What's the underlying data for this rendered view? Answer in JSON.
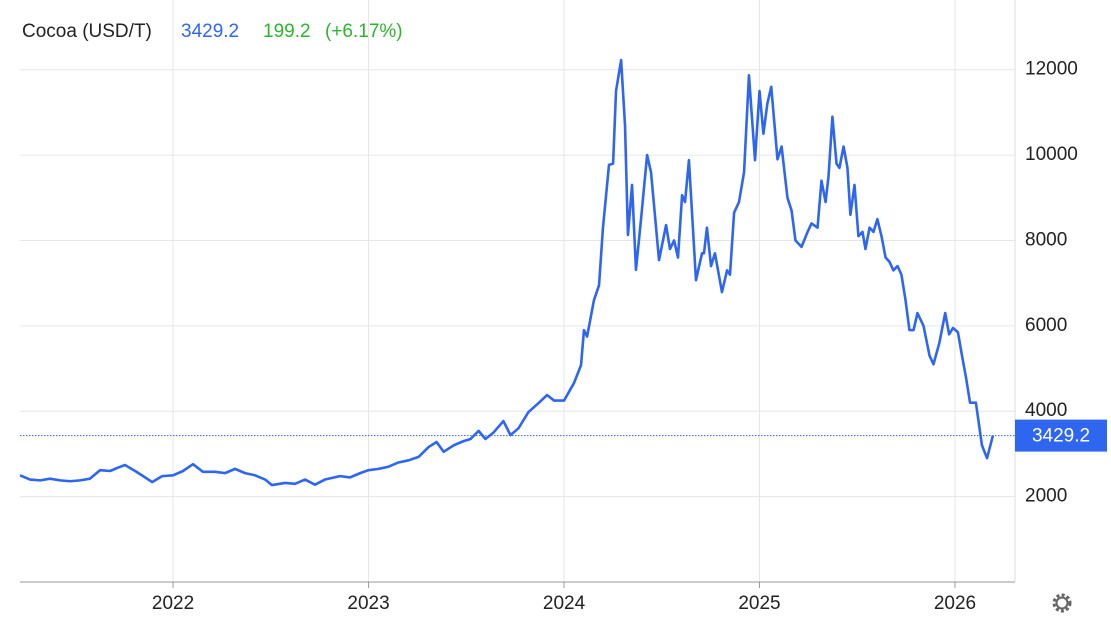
{
  "chart_data": {
    "type": "line",
    "title": "Cocoa (USD/T)",
    "price": 3429.2,
    "change": 199.2,
    "change_pct": "(+6.17%)",
    "xlim": [
      2021.217,
      2026.307
    ],
    "xticks": [
      2022,
      2023,
      2024,
      2025,
      2026
    ],
    "ylim": [
      0,
      13000
    ],
    "yticks": [
      2000,
      4000,
      6000,
      8000,
      10000,
      12000
    ],
    "grid": true,
    "series": [
      {
        "name": "Cocoa",
        "color": "#2f66f0",
        "x": [
          2021.217,
          2021.269,
          2021.32,
          2021.371,
          2021.422,
          2021.473,
          2021.524,
          2021.575,
          2021.627,
          2021.678,
          2021.719,
          2021.754,
          2021.806,
          2021.857,
          2021.893,
          2021.944,
          2022.0,
          2022.051,
          2022.102,
          2022.153,
          2022.215,
          2022.266,
          2022.317,
          2022.368,
          2022.419,
          2022.471,
          2022.506,
          2022.573,
          2022.624,
          2022.675,
          2022.726,
          2022.777,
          2022.854,
          2022.905,
          2022.957,
          2023.0,
          2023.051,
          2023.102,
          2023.153,
          2023.205,
          2023.256,
          2023.307,
          2023.348,
          2023.384,
          2023.435,
          2023.486,
          2023.522,
          2023.563,
          2023.598,
          2023.639,
          2023.69,
          2023.726,
          2023.767,
          2023.818,
          2023.872,
          2023.913,
          2023.949,
          2024.0,
          2024.051,
          2024.087,
          2024.102,
          2024.118,
          2024.153,
          2024.179,
          2024.199,
          2024.23,
          2024.251,
          2024.266,
          2024.292,
          2024.312,
          2024.327,
          2024.348,
          2024.368,
          2024.394,
          2024.425,
          2024.445,
          2024.486,
          2024.522,
          2024.542,
          2024.563,
          2024.583,
          2024.604,
          2024.619,
          2024.639,
          2024.675,
          2024.706,
          2024.716,
          2024.731,
          2024.752,
          2024.772,
          2024.808,
          2024.834,
          2024.849,
          2024.87,
          2024.895,
          2024.921,
          2024.946,
          2024.977,
          2025.0,
          2025.02,
          2025.04,
          2025.06,
          2025.092,
          2025.113,
          2025.143,
          2025.164,
          2025.184,
          2025.215,
          2025.246,
          2025.266,
          2025.297,
          2025.317,
          2025.338,
          2025.353,
          2025.373,
          2025.394,
          2025.409,
          2025.43,
          2025.45,
          2025.465,
          2025.486,
          2025.506,
          2025.527,
          2025.542,
          2025.563,
          2025.583,
          2025.603,
          2025.624,
          2025.645,
          2025.665,
          2025.685,
          2025.706,
          2025.726,
          2025.747,
          2025.767,
          2025.788,
          2025.808,
          2025.839,
          2025.87,
          2025.89,
          2025.92,
          2025.95,
          2025.97,
          2025.99,
          2026.015,
          2026.036,
          2026.056,
          2026.077,
          2026.107,
          2026.138,
          2026.164,
          2026.194
        ],
        "values": [
          2500,
          2400,
          2380,
          2420,
          2380,
          2360,
          2380,
          2420,
          2620,
          2600,
          2680,
          2740,
          2600,
          2450,
          2340,
          2480,
          2500,
          2600,
          2760,
          2580,
          2580,
          2550,
          2650,
          2550,
          2500,
          2400,
          2270,
          2320,
          2300,
          2400,
          2280,
          2400,
          2480,
          2450,
          2550,
          2620,
          2650,
          2700,
          2800,
          2850,
          2930,
          3160,
          3280,
          3050,
          3200,
          3300,
          3350,
          3540,
          3350,
          3500,
          3770,
          3440,
          3600,
          3980,
          4200,
          4380,
          4250,
          4250,
          4660,
          5080,
          5900,
          5750,
          6600,
          6950,
          8290,
          9770,
          9800,
          11500,
          12225,
          10700,
          8130,
          9300,
          7310,
          8500,
          10000,
          9600,
          7540,
          8360,
          7800,
          8000,
          7600,
          9060,
          8900,
          9880,
          7070,
          7700,
          7700,
          8300,
          7400,
          7700,
          6790,
          7300,
          7200,
          8650,
          8900,
          9600,
          11870,
          9880,
          11500,
          10500,
          11200,
          11600,
          9900,
          10200,
          9000,
          8700,
          8000,
          7850,
          8200,
          8400,
          8300,
          9400,
          8900,
          9500,
          10900,
          9800,
          9700,
          10200,
          9700,
          8600,
          9300,
          8100,
          8200,
          7800,
          8300,
          8200,
          8500,
          8100,
          7600,
          7500,
          7300,
          7400,
          7200,
          6600,
          5900,
          5900,
          6300,
          6000,
          5300,
          5100,
          5600,
          6300,
          5800,
          5950,
          5850,
          5300,
          4800,
          4200,
          4200,
          3200,
          2900,
          3429.2
        ]
      }
    ]
  }
}
